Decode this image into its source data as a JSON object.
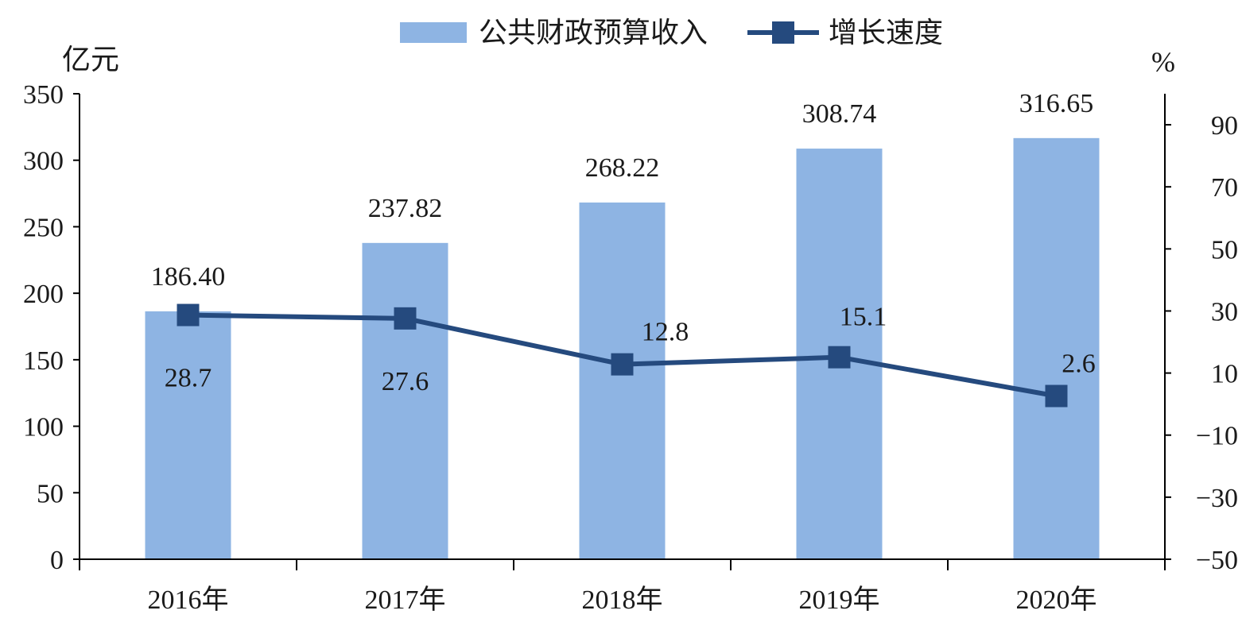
{
  "chart_data": {
    "type": "bar+line",
    "categories": [
      "2016年",
      "2017年",
      "2018年",
      "2019年",
      "2020年"
    ],
    "series": [
      {
        "name": "公共财政预算收入",
        "type": "bar",
        "axis": "left",
        "values": [
          186.4,
          237.82,
          268.22,
          308.74,
          316.65
        ],
        "labels": [
          "186.40",
          "237.82",
          "268.22",
          "308.74",
          "316.65"
        ],
        "color": "#8EB4E3"
      },
      {
        "name": "增长速度",
        "type": "line",
        "axis": "right",
        "values": [
          28.7,
          27.6,
          12.8,
          15.1,
          2.6
        ],
        "labels": [
          "28.7",
          "27.6",
          "12.8",
          "15.1",
          "2.6"
        ],
        "color": "#254A7E"
      }
    ],
    "left_axis": {
      "unit": "亿元",
      "range": [
        0,
        350
      ],
      "ticks": [
        "0",
        "50",
        "100",
        "150",
        "200",
        "250",
        "300",
        "350"
      ]
    },
    "right_axis": {
      "unit": "%",
      "range": [
        -50,
        100
      ],
      "tick_values": [
        -50,
        -30,
        -10,
        10,
        30,
        50,
        70,
        90
      ],
      "ticks": [
        "−50",
        "−30",
        "−10",
        "10",
        "30",
        "50",
        "70",
        "90"
      ]
    },
    "legend_position": "top-center",
    "grid": false
  }
}
